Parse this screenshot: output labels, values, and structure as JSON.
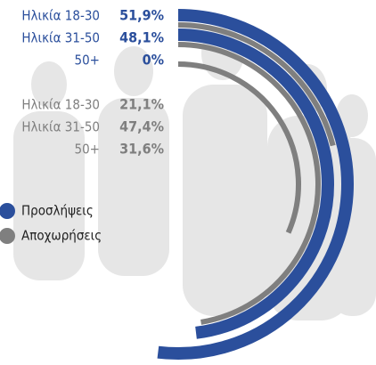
{
  "chart_data": {
    "type": "radial_bar",
    "categories": [
      "Ηλικία 18-30",
      "Ηλικία 31-50",
      "50+"
    ],
    "thetalim": [
      0,
      100
    ],
    "series": [
      {
        "name": "Προσλήψεις",
        "color": "#2b4f9c",
        "values": [
          51.9,
          48.1,
          0
        ],
        "value_labels": [
          "51,9%",
          "48,1%",
          "0%"
        ]
      },
      {
        "name": "Αποχωρήσεις",
        "color": "#7f7f7f",
        "values": [
          21.1,
          47.4,
          31.6
        ],
        "value_labels": [
          "21,1%",
          "47,4%",
          "31,6%"
        ]
      }
    ]
  }
}
